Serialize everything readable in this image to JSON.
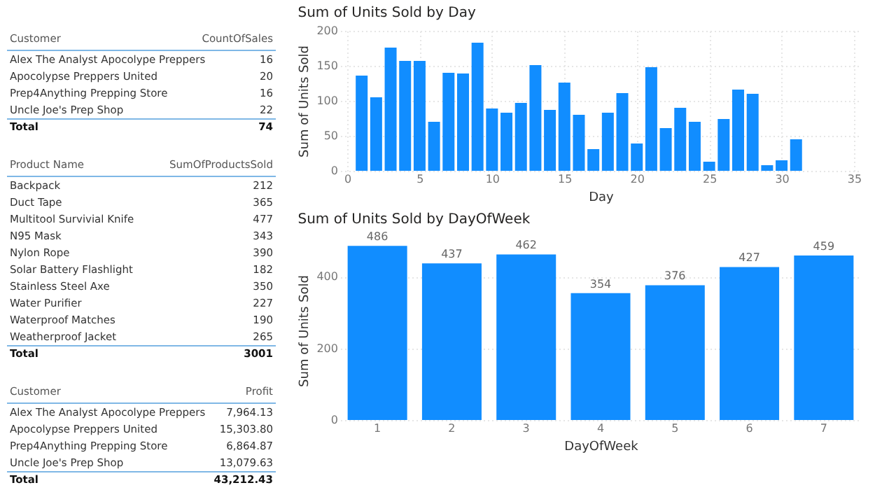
{
  "chart_data": [
    {
      "type": "other",
      "xlabel": "Customer",
      "ylabel": "CountOfSales",
      "categories": [
        "Alex The Analyst Apocolype Preppers",
        "Apocolypse Preppers United",
        "Prep4Anything Prepping Store",
        "Uncle Joe's Prep Shop",
        "Total"
      ],
      "values": [
        16,
        20,
        16,
        22,
        74
      ],
      "data_labels": true
    },
    {
      "type": "other",
      "xlabel": "Product Name",
      "ylabel": "SumOfProductsSold",
      "categories": [
        "Backpack",
        "Duct Tape",
        "Multitool Survivial Knife",
        "N95 Mask",
        "Nylon Rope",
        "Solar Battery Flashlight",
        "Stainless Steel Axe",
        "Water Purifier",
        "Waterproof Matches",
        "Weatherproof Jacket",
        "Total"
      ],
      "values": [
        212,
        365,
        477,
        343,
        390,
        182,
        350,
        227,
        190,
        265,
        3001
      ],
      "data_labels": true
    },
    {
      "type": "other",
      "xlabel": "Customer",
      "ylabel": "Profit",
      "categories": [
        "Alex The Analyst Apocolype Preppers",
        "Apocolypse Preppers United",
        "Prep4Anything Prepping Store",
        "Uncle Joe's Prep Shop",
        "Total"
      ],
      "values": [
        7964.13,
        15303.8,
        6864.87,
        13079.63,
        43212.43
      ],
      "value_labels": [
        "7,964.13",
        "15,303.80",
        "6,864.87",
        "13,079.63",
        "43,212.43"
      ]
    },
    {
      "type": "bar",
      "title": "Sum of Units Sold by Day",
      "xlabel": "Day",
      "ylabel": "Sum of Units Sold",
      "color": "#118dff",
      "grid": true,
      "x": [
        1,
        2,
        3,
        4,
        5,
        6,
        7,
        8,
        9,
        10,
        11,
        12,
        13,
        14,
        15,
        16,
        17,
        18,
        19,
        20,
        21,
        22,
        23,
        24,
        25,
        26,
        27,
        28,
        29,
        30,
        31
      ],
      "values": [
        136,
        105,
        176,
        157,
        157,
        70,
        140,
        139,
        183,
        89,
        83,
        97,
        151,
        87,
        126,
        80,
        31,
        83,
        111,
        39,
        148,
        61,
        90,
        70,
        13,
        74,
        116,
        110,
        8,
        15,
        45
      ],
      "xlim": [
        0,
        35
      ],
      "xticks": [
        0,
        5,
        10,
        15,
        20,
        25,
        30,
        35
      ],
      "ylim": [
        0,
        200
      ],
      "yticks": [
        0,
        50,
        100,
        150,
        200
      ]
    },
    {
      "type": "bar",
      "title": "Sum of Units Sold by DayOfWeek",
      "xlabel": "DayOfWeek",
      "ylabel": "Sum of Units Sold",
      "color": "#118dff",
      "grid": "y",
      "data_labels": true,
      "categories": [
        "1",
        "2",
        "3",
        "4",
        "5",
        "6",
        "7"
      ],
      "values": [
        486,
        437,
        462,
        354,
        376,
        427,
        459
      ],
      "ylim": [
        0,
        500
      ],
      "yticks": [
        0,
        200,
        400
      ]
    }
  ]
}
